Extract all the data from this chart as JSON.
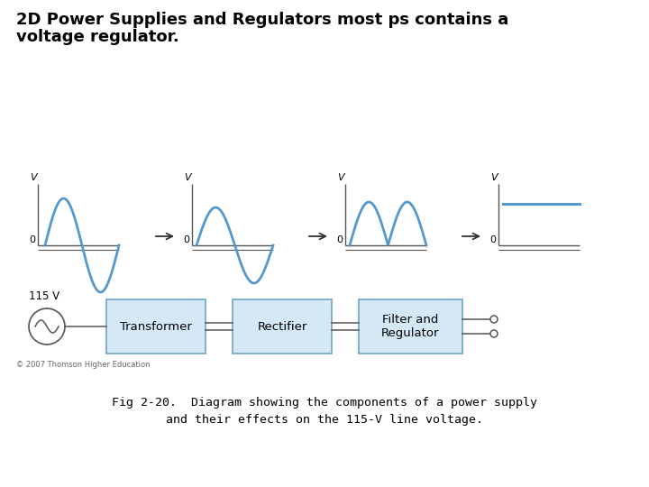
{
  "title_line1": "2D Power Supplies and Regulators most ps contains a",
  "title_line2": "voltage regulator.",
  "title_fontsize": 13,
  "wave_color": "#5599cc",
  "axis_color": "#555555",
  "box_fill_color": "#d4e8f5",
  "box_edge_color": "#7aaac8",
  "arrow_color": "#333333",
  "caption": "Fig 2-20.  Diagram showing the components of a power supply\nand their effects on the 115-V line voltage.",
  "caption_fontsize": 9.5,
  "copyright": "© 2007 Thomson Higher Education",
  "copyright_fontsize": 6,
  "block_labels": [
    "Transformer",
    "Rectifier",
    "Filter and\nRegulator"
  ],
  "voltage_label": "115 V",
  "background_color": "#ffffff"
}
